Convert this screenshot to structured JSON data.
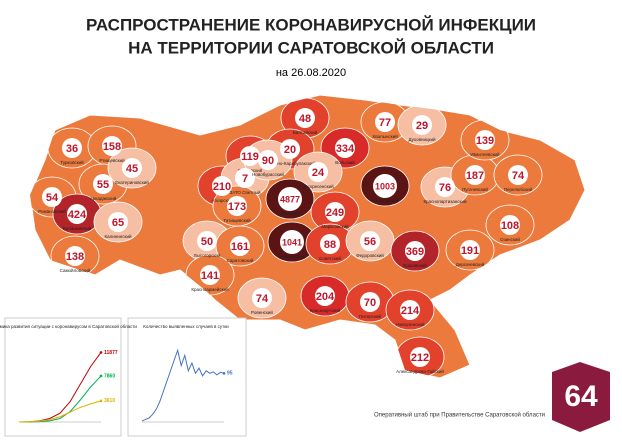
{
  "header": {
    "title_line1": "РАСПРОСТРАНЕНИЕ КОРОНАВИРУСНОЙ ИНФЕКЦИИ",
    "title_line2": "НА ТЕРРИТОРИИ САРАТОВСКОЙ ОБЛАСТИ",
    "date": "на 26.08.2020"
  },
  "regions": [
    {
      "name": "Турковский",
      "cases": 36,
      "color": "#ec7a3c"
    },
    {
      "name": "Ртищевский",
      "cases": 158,
      "color": "#ec7a3c"
    },
    {
      "name": "Романовский",
      "cases": 54,
      "color": "#ec7a3c"
    },
    {
      "name": "Аркадакский",
      "cases": 55,
      "color": "#ec7a3c"
    },
    {
      "name": "Балашовский",
      "cases": 424,
      "color": "#b3232a"
    },
    {
      "name": "Самойловский",
      "cases": 138,
      "color": "#ec7a3c"
    },
    {
      "name": "Екатериновский",
      "cases": 45,
      "color": "#f6bfa3"
    },
    {
      "name": "Калининский",
      "cases": 65,
      "color": "#f6bfa3"
    },
    {
      "name": "Петровский",
      "cases": 119,
      "color": "#e2412c"
    },
    {
      "name": "Аткарский",
      "cases": 210,
      "color": "#e2412c"
    },
    {
      "name": "ЗАТО Светлый",
      "cases": 7,
      "color": "#f6bfa3"
    },
    {
      "name": "Татищевский",
      "cases": 173,
      "color": "#ec7a3c"
    },
    {
      "name": "Лысогорский",
      "cases": 50,
      "color": "#f6bfa3"
    },
    {
      "name": "Саратовский",
      "cases": 161,
      "color": "#ec7a3c"
    },
    {
      "name": "Красноармейский",
      "cases": 141,
      "color": "#ec7a3c"
    },
    {
      "name": "Балтайский",
      "cases": 48,
      "color": "#e2412c"
    },
    {
      "name": "Базарно-Карабулакский",
      "cases": 20,
      "color": "#e2412c"
    },
    {
      "name": "Новобурасский",
      "cases": 90,
      "color": "#f6bfa3"
    },
    {
      "name": "Вольский",
      "cases": 334,
      "color": "#d92a2a"
    },
    {
      "name": "Воскресенский",
      "cases": 24,
      "color": "#f6bfa3"
    },
    {
      "name": "Хвалынский",
      "cases": 77,
      "color": "#ec7a3c"
    },
    {
      "name": "Духовницкий",
      "cases": 29,
      "color": "#f6bfa3"
    },
    {
      "name": "САРАТОВ",
      "cases": 4877,
      "color": "#5a1414"
    },
    {
      "name": "Энгельсский",
      "cases": 1041,
      "color": "#5a1414"
    },
    {
      "name": "Марксовский",
      "cases": 249,
      "color": "#e2412c"
    },
    {
      "name": "Балаковский",
      "cases": 1003,
      "color": "#5a1414"
    },
    {
      "name": "Советский",
      "cases": 88,
      "color": "#e2412c"
    },
    {
      "name": "Федоровский",
      "cases": 56,
      "color": "#f6bfa3"
    },
    {
      "name": "Ровенский",
      "cases": 74,
      "color": "#f6bfa3"
    },
    {
      "name": "Краснокутский",
      "cases": 204,
      "color": "#d92a2a"
    },
    {
      "name": "Питерский",
      "cases": 70,
      "color": "#e2412c"
    },
    {
      "name": "Новоузенский",
      "cases": 214,
      "color": "#e2412c"
    },
    {
      "name": "Александрово-Гайский",
      "cases": 212,
      "color": "#e2412c"
    },
    {
      "name": "Ершовский",
      "cases": 369,
      "color": "#b3232a"
    },
    {
      "name": "Дергачевский",
      "cases": 191,
      "color": "#ec7a3c"
    },
    {
      "name": "Краснопартизанский",
      "cases": 76,
      "color": "#f6bfa3"
    },
    {
      "name": "Пугачевский",
      "cases": 187,
      "color": "#ec7a3c"
    },
    {
      "name": "Ивантеевский",
      "cases": 139,
      "color": "#ec7a3c"
    },
    {
      "name": "Перелюбский",
      "cases": 74,
      "color": "#ec7a3c"
    },
    {
      "name": "Озинский",
      "cases": 108,
      "color": "#ec7a3c"
    }
  ],
  "chart_data": [
    {
      "type": "line",
      "title": "Динамика развития ситуации с коронавирусом в Саратовской области",
      "ylim": [
        0,
        14000
      ],
      "series": [
        {
          "color": "#c00000",
          "values": [
            0,
            50,
            200,
            600,
            1500,
            3500,
            6500,
            9500,
            11877
          ]
        },
        {
          "color": "#00b050",
          "values": [
            0,
            10,
            60,
            200,
            600,
            1800,
            3800,
            6000,
            7860
          ]
        },
        {
          "color": "#e0b000",
          "values": [
            0,
            40,
            140,
            400,
            900,
            1700,
            2500,
            3100,
            3610
          ]
        }
      ]
    },
    {
      "type": "line",
      "title": "Количество выявленных случаев в сутки",
      "ylim": [
        0,
        160
      ],
      "series": [
        {
          "color": "#4472c4",
          "values": [
            2,
            5,
            8,
            15,
            25,
            40,
            60,
            80,
            100,
            120,
            140,
            110,
            130,
            100,
            115,
            95,
            105,
            90,
            100,
            95,
            98,
            92,
            97,
            95
          ]
        }
      ]
    }
  ],
  "footer": "Оперативный штаб при Правительстве Саратовской области",
  "badge": "64"
}
